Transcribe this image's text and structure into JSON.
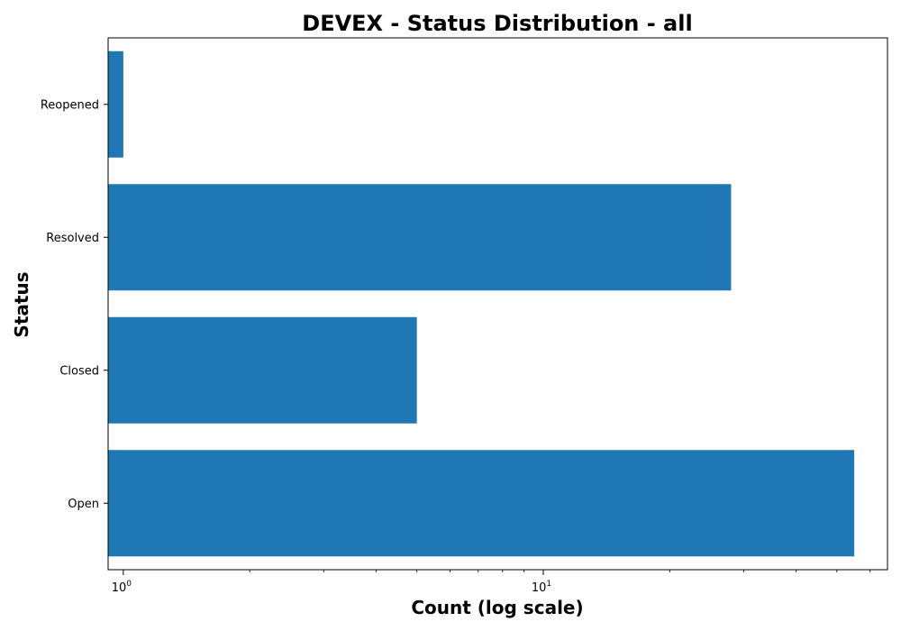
{
  "chart_data": {
    "type": "bar",
    "orientation": "horizontal",
    "title": "DEVEX - Status Distribution - all",
    "xlabel": "Count (log scale)",
    "ylabel": "Status",
    "xscale": "log",
    "xlim": [
      0.92,
      66
    ],
    "x_major_ticks": [
      {
        "base": "10",
        "exp": "0",
        "value": 1
      },
      {
        "base": "10",
        "exp": "1",
        "value": 10
      }
    ],
    "categories": [
      "Open",
      "Closed",
      "Resolved",
      "Reopened"
    ],
    "values": [
      55,
      5,
      28,
      1
    ],
    "bar_color": "#1f77b4",
    "grid": false,
    "legend": false
  }
}
